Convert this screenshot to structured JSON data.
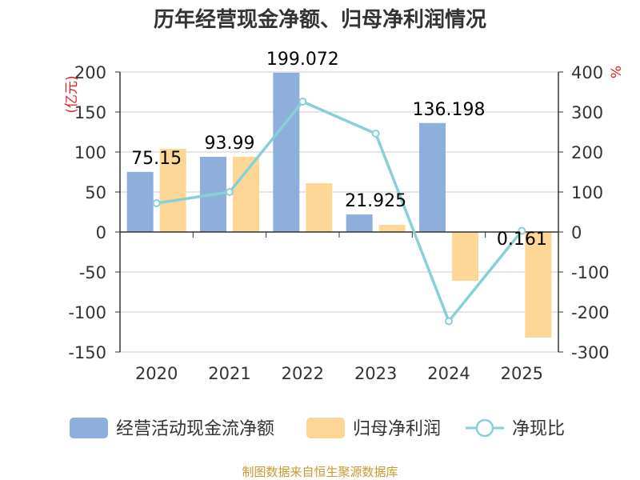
{
  "chart_data": {
    "type": "bar",
    "title": "历年经营现金净额、归母净利润情况",
    "categories": [
      "2020",
      "2021",
      "2022",
      "2023",
      "2024",
      "2025"
    ],
    "series": [
      {
        "name": "经营活动现金流净额",
        "kind": "bar",
        "axis": "left",
        "color": "#8eaedb",
        "values": [
          75.15,
          93.99,
          199.072,
          21.925,
          136.198,
          0.161
        ]
      },
      {
        "name": "归母净利润",
        "kind": "bar",
        "axis": "left",
        "color": "#fed796",
        "values": [
          104,
          94,
          61,
          9,
          -61,
          -132
        ]
      },
      {
        "name": "净现比",
        "kind": "line",
        "axis": "right",
        "color": "#87d1d6",
        "values": [
          72,
          100,
          326,
          246,
          -223,
          3
        ]
      }
    ],
    "data_labels": [
      "75.15",
      "93.99",
      "199.072",
      "21.925",
      "136.198",
      "0.161"
    ],
    "ylabel_left": "(亿元)",
    "ylabel_right": "%",
    "ylim_left": [
      -150,
      200
    ],
    "ylim_right": [
      -300,
      400
    ],
    "yticks_left": [
      "200",
      "150",
      "100",
      "50",
      "0",
      "-50",
      "-100",
      "-150"
    ],
    "yticks_right": [
      "400",
      "300",
      "200",
      "100",
      "0",
      "-100",
      "-200",
      "-300"
    ],
    "grid": true,
    "legend_position": "bottom"
  },
  "footer": {
    "source": "制图数据来自恒生聚源数据库"
  }
}
